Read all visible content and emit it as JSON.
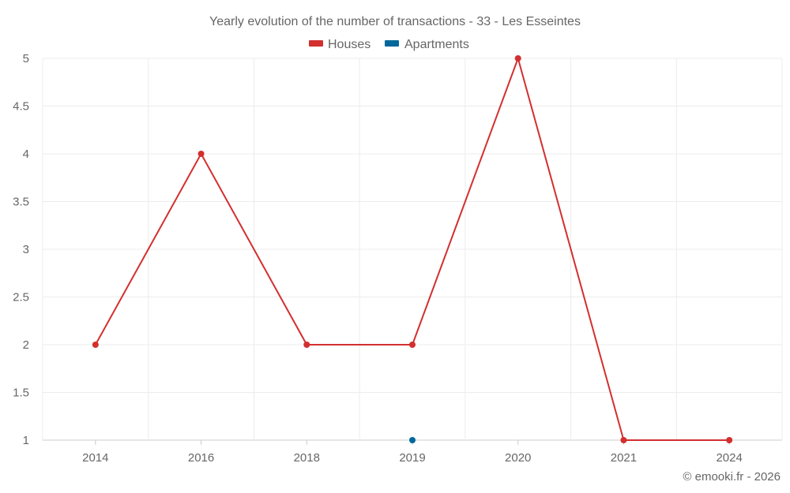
{
  "chart_data": {
    "type": "line",
    "title": "Yearly evolution of the number of transactions - 33 - Les Esseintes",
    "categories": [
      "2014",
      "2016",
      "2018",
      "2019",
      "2020",
      "2021",
      "2024"
    ],
    "series": [
      {
        "name": "Houses",
        "color": "#d32f2f",
        "values": [
          2,
          4,
          2,
          2,
          5,
          1,
          1
        ]
      },
      {
        "name": "Apartments",
        "color": "#01689b",
        "values": [
          null,
          null,
          null,
          1,
          null,
          null,
          null
        ]
      }
    ],
    "ylim": [
      1,
      5
    ],
    "yticks": [
      "1",
      "1.5",
      "2",
      "2.5",
      "3",
      "3.5",
      "4",
      "4.5",
      "5"
    ],
    "xlabel": "",
    "ylabel": "",
    "grid": true,
    "legend_position": "top-center"
  },
  "credit": "© emooki.fr - 2026"
}
